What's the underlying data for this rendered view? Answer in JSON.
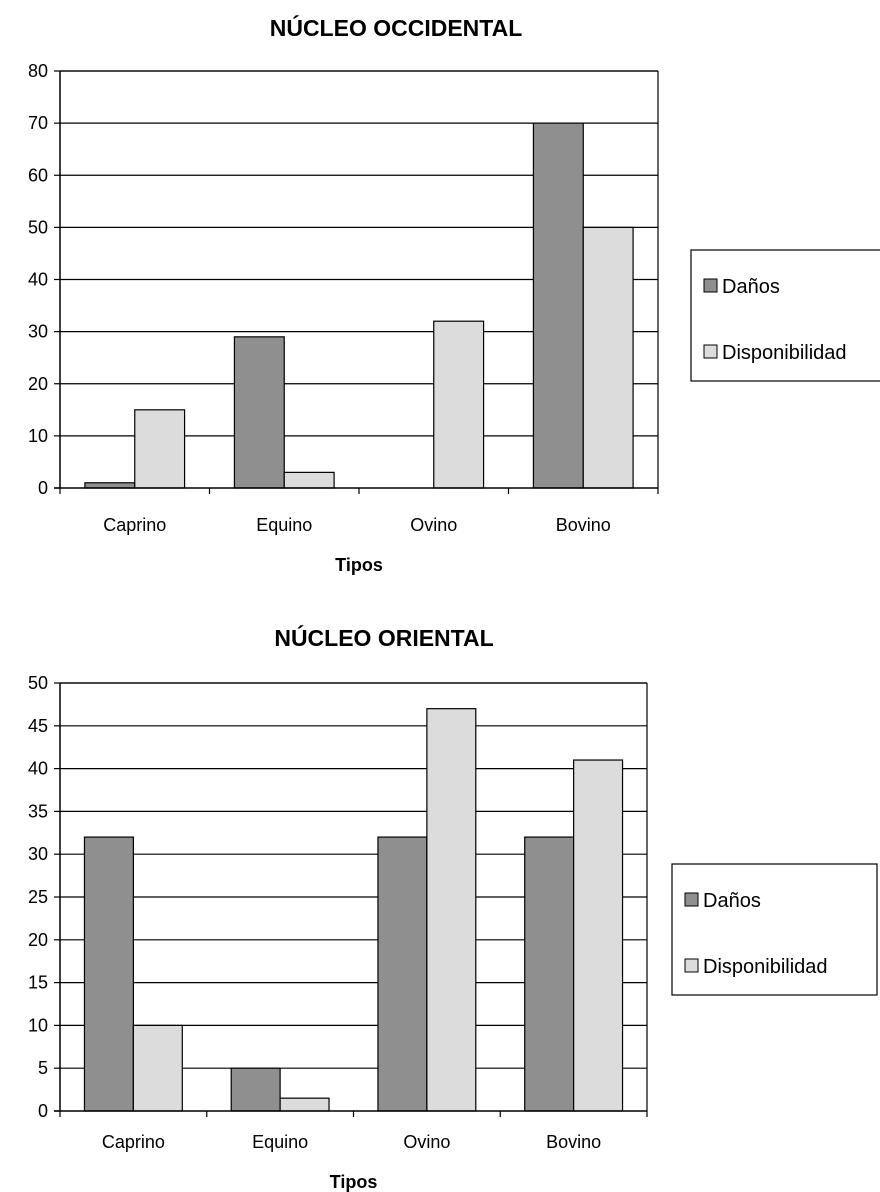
{
  "chart_data": [
    {
      "type": "bar",
      "title": "NÚCLEO OCCIDENTAL",
      "xlabel": "Tipos",
      "ylabel": "",
      "ylim": [
        0,
        80
      ],
      "yticks": [
        "0",
        "10",
        "20",
        "30",
        "40",
        "50",
        "60",
        "70",
        "80"
      ],
      "categories": [
        "Caprino",
        "Equino",
        "Ovino",
        "Bovino"
      ],
      "series": [
        {
          "name": "Daños",
          "values": [
            1,
            29,
            0,
            70
          ],
          "color": "#8f8f8f"
        },
        {
          "name": "Disponibilidad",
          "values": [
            15,
            3,
            32,
            50
          ],
          "color": "#dcdcdc"
        }
      ],
      "grid": true,
      "legend": "right"
    },
    {
      "type": "bar",
      "title": "NÚCLEO ORIENTAL",
      "xlabel": "Tipos",
      "ylabel": "",
      "ylim": [
        0,
        50
      ],
      "yticks": [
        "0",
        "5",
        "10",
        "15",
        "20",
        "25",
        "30",
        "35",
        "40",
        "45",
        "50"
      ],
      "categories": [
        "Caprino",
        "Equino",
        "Ovino",
        "Bovino"
      ],
      "series": [
        {
          "name": "Daños",
          "values": [
            32,
            5,
            32,
            32
          ],
          "color": "#8f8f8f"
        },
        {
          "name": "Disponibilidad",
          "values": [
            10,
            1.5,
            47,
            41
          ],
          "color": "#dcdcdc"
        }
      ],
      "grid": true,
      "legend": "right"
    }
  ]
}
